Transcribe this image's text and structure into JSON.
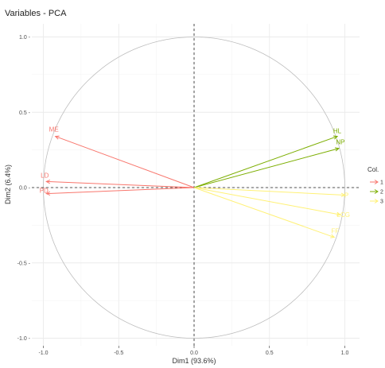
{
  "chart_data": {
    "type": "scatter",
    "subtype": "pca-variables-correlation-circle",
    "title": "Variables - PCA",
    "xlabel": "Dim1 (93.6%)",
    "ylabel": "Dim2 (6.4%)",
    "xlim": [
      -1.05,
      1.05
    ],
    "ylim": [
      -1.0,
      1.0
    ],
    "x_ticks": [
      -1.0,
      -0.5,
      0.0,
      0.5,
      1.0
    ],
    "x_tick_labels": [
      "-1.0",
      "-0.5",
      "0.0",
      "0.5",
      "1.0"
    ],
    "y_ticks": [
      -1.0,
      -0.5,
      0.0,
      0.5,
      1.0
    ],
    "y_tick_labels": [
      "-1.0 -",
      "-0.5 -",
      "0.0 -",
      "0.5 -",
      "1.0 -"
    ],
    "grid": true,
    "legend": {
      "title": "Col.",
      "position": "right",
      "entries": [
        "1",
        "2",
        "3"
      ]
    },
    "series": [
      {
        "name": "1",
        "color": "#F8766D",
        "points": [
          {
            "label": "ME",
            "x": -0.92,
            "y": 0.34
          },
          {
            "label": "LD",
            "x": -0.98,
            "y": 0.04
          },
          {
            "label": "PD",
            "x": -0.98,
            "y": -0.04
          }
        ]
      },
      {
        "name": "2",
        "color": "#7CAE00",
        "points": [
          {
            "label": "HL",
            "x": 0.95,
            "y": 0.34
          },
          {
            "label": "NP",
            "x": 0.96,
            "y": 0.26
          }
        ]
      },
      {
        "name": "3",
        "color": "#FFF176",
        "points": [
          {
            "label": "P",
            "x": 1.0,
            "y": -0.05
          },
          {
            "label": "LCG",
            "x": 0.97,
            "y": -0.18
          },
          {
            "label": "FF",
            "x": 0.93,
            "y": -0.33
          }
        ]
      }
    ]
  }
}
